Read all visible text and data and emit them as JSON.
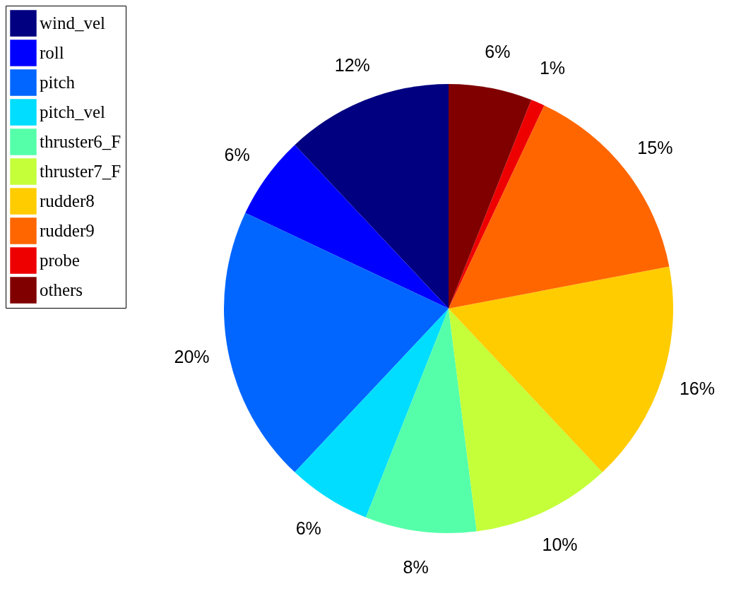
{
  "chart_data": {
    "type": "pie",
    "categories": [
      "wind_vel",
      "roll",
      "pitch",
      "pitch_vel",
      "thruster6_F",
      "thruster7_F",
      "rudder8",
      "rudder9",
      "probe",
      "others"
    ],
    "values": [
      12,
      6,
      20,
      6,
      8,
      10,
      16,
      15,
      1,
      6
    ],
    "value_labels": [
      "12%",
      "6%",
      "20%",
      "6%",
      "8%",
      "10%",
      "16%",
      "15%",
      "1%",
      "6%"
    ],
    "colors": [
      "#000080",
      "#0000ff",
      "#0066ff",
      "#00ddff",
      "#55ffaa",
      "#c4ff3a",
      "#ffcc00",
      "#ff6600",
      "#ee0000",
      "#800000"
    ],
    "legend": "top left"
  }
}
